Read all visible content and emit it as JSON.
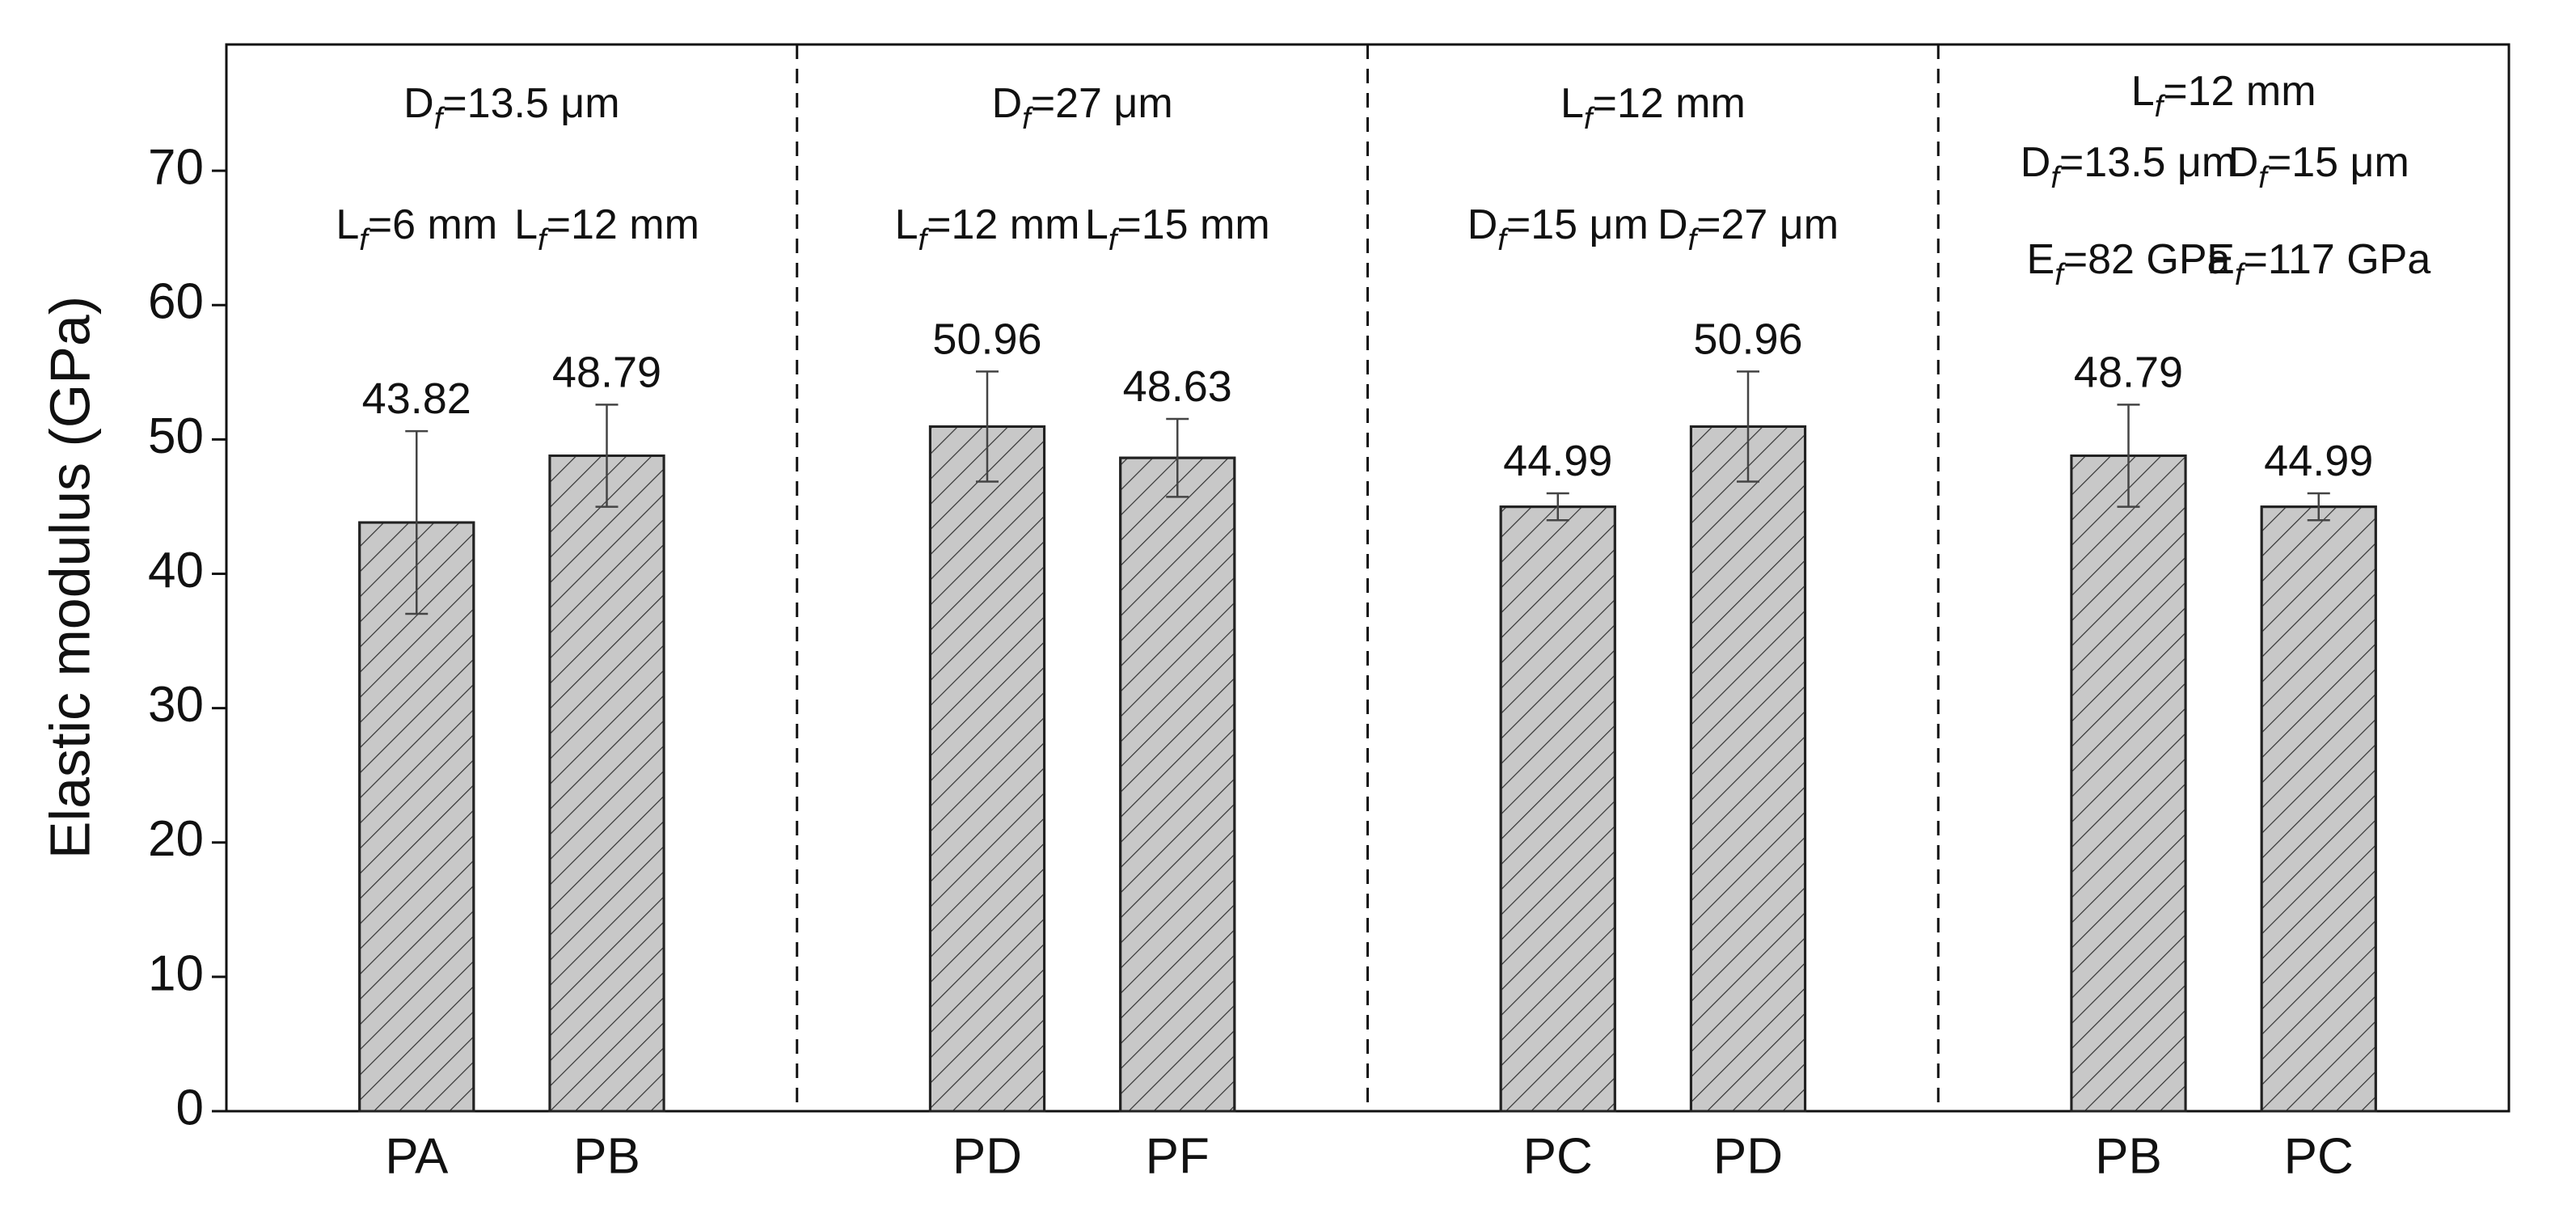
{
  "chart_data": {
    "type": "bar",
    "y_label": "Elastic modulus (GPa)",
    "categories": [
      "PA",
      "PB",
      "PD",
      "PF",
      "PC",
      "PD",
      "PB",
      "PC"
    ],
    "values": [
      43.82,
      48.79,
      50.96,
      48.63,
      44.99,
      50.96,
      48.79,
      44.99
    ],
    "errors": [
      6.8,
      3.8,
      4.1,
      2.9,
      1.0,
      4.1,
      3.8,
      1.0
    ],
    "color": "#c8c8c8",
    "hatch": true,
    "ylim": [
      0,
      79.4
    ],
    "yticks": [
      0,
      10,
      20,
      30,
      40,
      50,
      60,
      70
    ],
    "groups": [
      {
        "header": [
          [
            "D",
            "f",
            "=13.5 μm"
          ]
        ],
        "bar_notes": [
          [
            [
              "L",
              "f",
              "=6 mm"
            ]
          ],
          [
            [
              "L",
              "f",
              "=12 mm"
            ]
          ]
        ]
      },
      {
        "header": [
          [
            "D",
            "f",
            "=27 μm"
          ]
        ],
        "bar_notes": [
          [
            [
              "L",
              "f",
              "=12 mm"
            ]
          ],
          [
            [
              "L",
              "f",
              "=15 mm"
            ]
          ]
        ]
      },
      {
        "header": [
          [
            "L",
            "f",
            "=12 mm"
          ]
        ],
        "bar_notes": [
          [
            [
              "D",
              "f",
              "=15 μm"
            ]
          ],
          [
            [
              "D",
              "f",
              "=27 μm"
            ]
          ]
        ]
      },
      {
        "header": [
          [
            "L",
            "f",
            "=12 mm"
          ]
        ],
        "bar_notes": [
          [
            [
              "D",
              "f",
              "=13.5 μm"
            ],
            [
              "E",
              "f",
              "=82 GPa"
            ]
          ],
          [
            [
              "D",
              "f",
              "=15 μm"
            ],
            [
              "E",
              "f",
              "=117 GPa"
            ]
          ]
        ]
      }
    ]
  }
}
